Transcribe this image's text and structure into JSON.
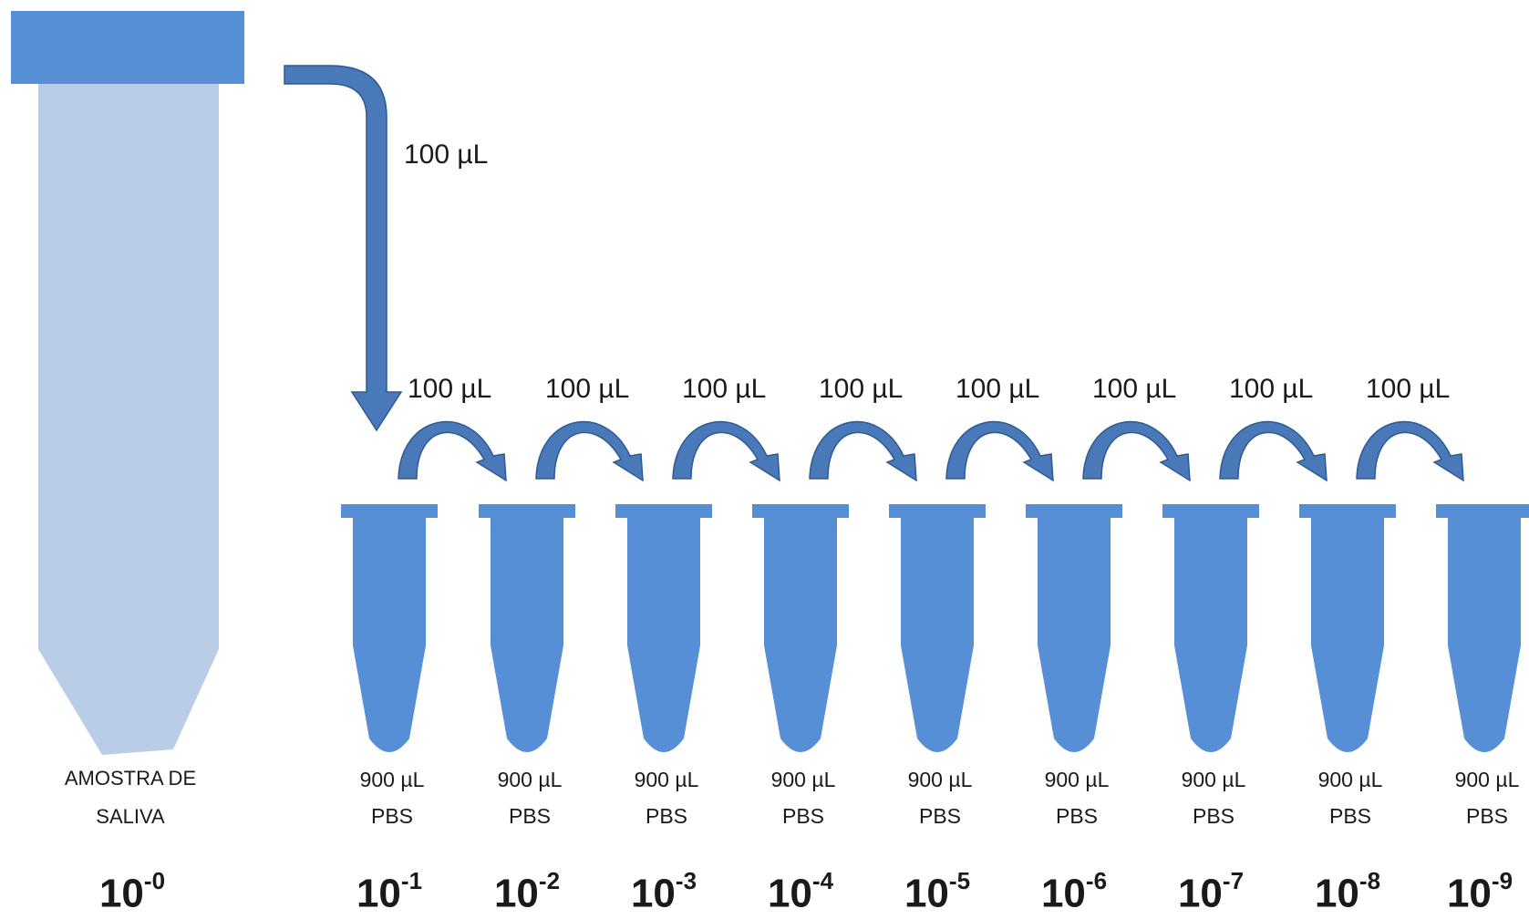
{
  "colors": {
    "tube_blue": "#568fd6",
    "stock_body": "#b9cde6",
    "arrow_fill": "#4a79ba",
    "arrow_edge": "#2f5a91"
  },
  "stock_tube": {
    "label_line1": "AMOSTRA DE",
    "label_line2": "SALIVA",
    "dilution_base": "10",
    "dilution_exp": "-0"
  },
  "first_transfer_label": "100 µL",
  "transfers": [
    {
      "label": "100 µL"
    },
    {
      "label": "100 µL"
    },
    {
      "label": "100 µL"
    },
    {
      "label": "100 µL"
    },
    {
      "label": "100 µL"
    },
    {
      "label": "100 µL"
    },
    {
      "label": "100 µL"
    },
    {
      "label": "100 µL"
    }
  ],
  "tubes": [
    {
      "volume": "900 µL",
      "buffer": "PBS",
      "base": "10",
      "exp": "-1"
    },
    {
      "volume": "900 µL",
      "buffer": "PBS",
      "base": "10",
      "exp": "-2"
    },
    {
      "volume": "900 µL",
      "buffer": "PBS",
      "base": "10",
      "exp": "-3"
    },
    {
      "volume": "900 µL",
      "buffer": "PBS",
      "base": "10",
      "exp": "-4"
    },
    {
      "volume": "900 µL",
      "buffer": "PBS",
      "base": "10",
      "exp": "-5"
    },
    {
      "volume": "900 µL",
      "buffer": "PBS",
      "base": "10",
      "exp": "-6"
    },
    {
      "volume": "900 µL",
      "buffer": "PBS",
      "base": "10",
      "exp": "-7"
    },
    {
      "volume": "900 µL",
      "buffer": "PBS",
      "base": "10",
      "exp": "-8"
    },
    {
      "volume": "900 µL",
      "buffer": "PBS",
      "base": "10",
      "exp": "-9"
    }
  ]
}
